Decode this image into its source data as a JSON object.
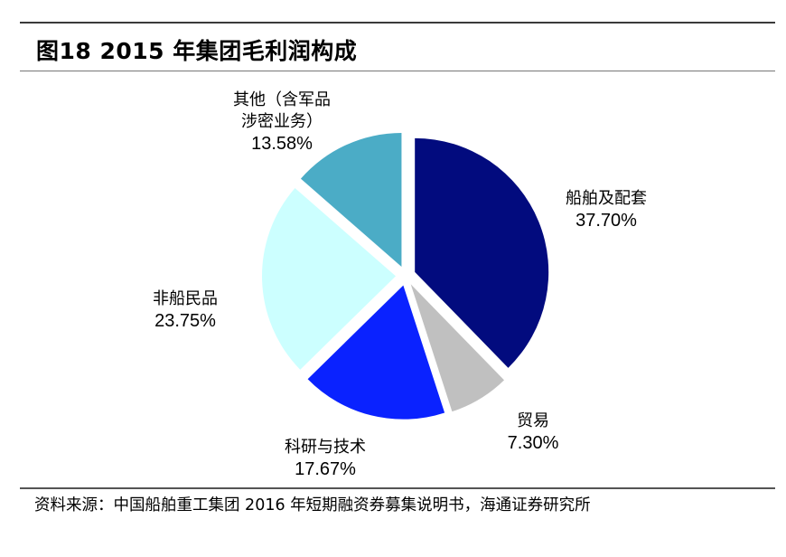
{
  "figure": {
    "title": "图18 2015 年集团毛利润构成",
    "source": "资料来源：中国船舶重工集团 2016 年短期融资券募集说明书，海通证券研究所"
  },
  "labels": [
    {
      "name": "船舶及配套",
      "pct": "37.70%"
    },
    {
      "name": "贸易",
      "pct": "7.30%"
    },
    {
      "name": "科研与技术",
      "pct": "17.67%"
    },
    {
      "name": "非船民品",
      "pct": "23.75%"
    },
    {
      "name": "其他（含军品涉密业务）",
      "name_line1": "其他（含军品",
      "name_line2": "涉密业务）",
      "pct": "13.58%"
    }
  ],
  "chart_data": {
    "type": "pie",
    "title": "图18 2015 年集团毛利润构成",
    "categories": [
      "船舶及配套",
      "贸易",
      "科研与技术",
      "非船民品",
      "其他（含军品涉密业务）"
    ],
    "values": [
      37.7,
      7.3,
      17.67,
      23.75,
      13.58
    ],
    "unit": "%",
    "colors": [
      "#020B7E",
      "#C0C0C0",
      "#0A22FF",
      "#CCFFFF",
      "#4BACC6"
    ],
    "start_angle": "12 o'clock, clockwise",
    "exploded": true,
    "legend": "none (data labels outside slices)"
  }
}
